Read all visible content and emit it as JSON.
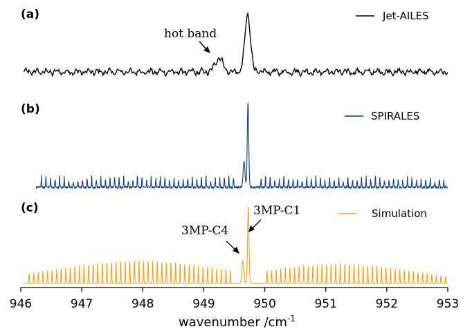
{
  "chart_data": {
    "type": "line",
    "xlabel": "wavenumber /cm",
    "xlabel_sup": "-1",
    "xlim": [
      946,
      953
    ],
    "xticks": [
      946,
      947,
      948,
      949,
      950,
      951,
      952,
      953
    ],
    "xtick_labels": [
      "946",
      "947",
      "948",
      "949",
      "950",
      "951",
      "952",
      "953"
    ],
    "grid": false,
    "panels": [
      {
        "label": "(a)",
        "series": {
          "name": "Jet-AILES",
          "color": "#000000",
          "x_range": [
            946.05,
            953
          ],
          "baseline": 0.0,
          "peaks": [
            {
              "x": 949.72,
              "height": 1.0,
              "width": 0.045
            },
            {
              "x": 949.25,
              "height": 0.25,
              "width": 0.06
            }
          ],
          "noise_amplitude": 0.06
        },
        "annotations": [
          {
            "text": "hot band",
            "x": 949.2,
            "y": 0.25
          }
        ]
      },
      {
        "label": "(b)",
        "series": {
          "name": "SPIRALES",
          "color": "#0d3f80",
          "x_range": [
            946.25,
            953
          ],
          "baseline": 0.0,
          "peaks": [
            {
              "x": 949.725,
              "height": 1.0,
              "width": 0.012
            },
            {
              "x": 949.66,
              "height": 0.3,
              "width": 0.015
            }
          ],
          "branch_progressions": [
            {
              "x_start": 946.3,
              "x_end": 949.55,
              "spacing": 0.075,
              "max_height": 0.15
            },
            {
              "x_start": 949.9,
              "x_end": 953.0,
              "spacing": 0.075,
              "max_height": 0.14
            }
          ],
          "noise_amplitude": 0.02
        }
      },
      {
        "label": "(c)",
        "series": {
          "name": "Simulation",
          "color": "#f5a11c",
          "x_range": [
            946.05,
            953
          ],
          "baseline": 0.0,
          "peaks": [
            {
              "x": 949.73,
              "height": 1.0,
              "width": 0.012
            },
            {
              "x": 949.64,
              "height": 0.3,
              "width": 0.015
            }
          ],
          "branch_progressions": [
            {
              "x_start": 946.1,
              "x_end": 949.5,
              "spacing": 0.075,
              "center": 947.95,
              "max_height": 0.3
            },
            {
              "x_start": 950.0,
              "x_end": 953.0,
              "spacing": 0.075,
              "center": 951.2,
              "max_height": 0.26
            }
          ]
        },
        "annotations": [
          {
            "text": "3MP-C1",
            "x": 949.73,
            "y": 1.0
          },
          {
            "text": "3MP-C4",
            "x": 949.64,
            "y": 0.3
          }
        ]
      }
    ]
  }
}
